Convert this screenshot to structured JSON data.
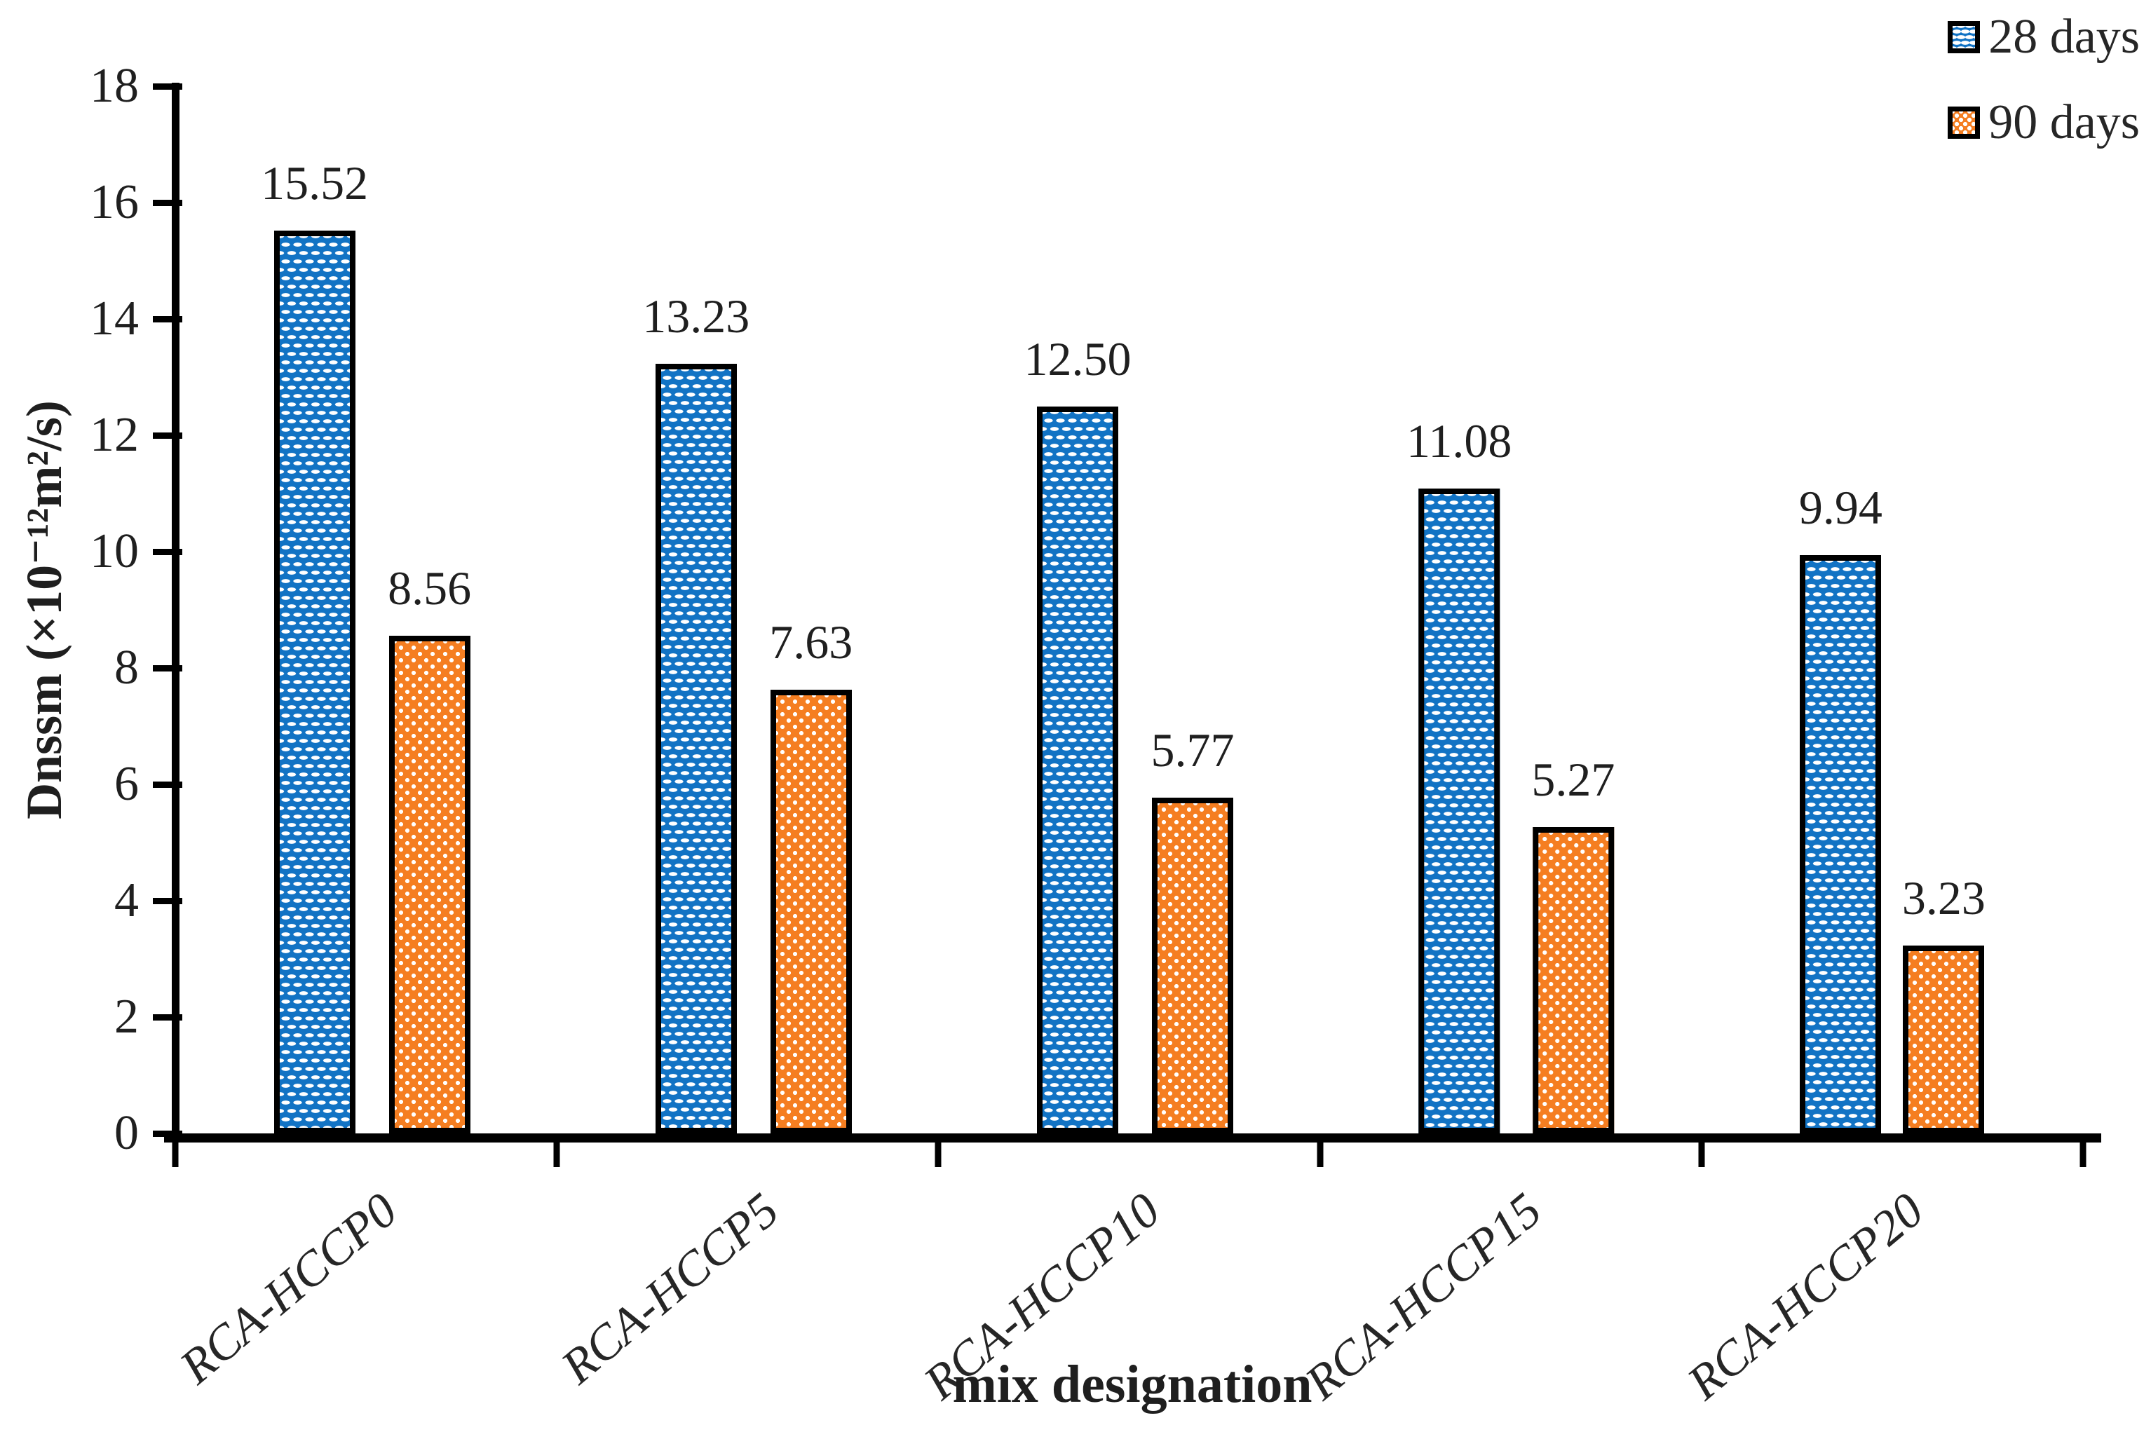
{
  "chart_data": {
    "type": "bar",
    "title": "",
    "categories": [
      "RCA-HCCP0",
      "RCA-HCCP5",
      "RCA-HCCP10",
      "RCA-HCCP15",
      "RCA-HCCP20"
    ],
    "series": [
      {
        "name": "28 days",
        "color": "#1273C4",
        "pattern": "white-dash-checker",
        "values": [
          15.52,
          13.23,
          12.5,
          11.08,
          9.94
        ],
        "labels": [
          "15.52",
          "13.23",
          "12.50",
          "11.08",
          "9.94"
        ]
      },
      {
        "name": "90 days",
        "color": "#F57E21",
        "pattern": "white-dot-grid",
        "values": [
          8.56,
          7.63,
          5.77,
          5.27,
          3.23
        ],
        "labels": [
          "8.56",
          "7.63",
          "5.77",
          "5.27",
          "3.23"
        ]
      }
    ],
    "xlabel": "mix designation",
    "ylabel": "Dnssm (×10⁻¹²m²/s)",
    "ylim": [
      0,
      18
    ],
    "yticks": [
      0,
      2,
      4,
      6,
      8,
      10,
      12,
      14,
      16,
      18
    ],
    "ytick_step": 2,
    "grid": false,
    "legend_position": "top-right",
    "value_labels": true,
    "bar_outline_color": "#000000",
    "axis_color": "#000000"
  }
}
